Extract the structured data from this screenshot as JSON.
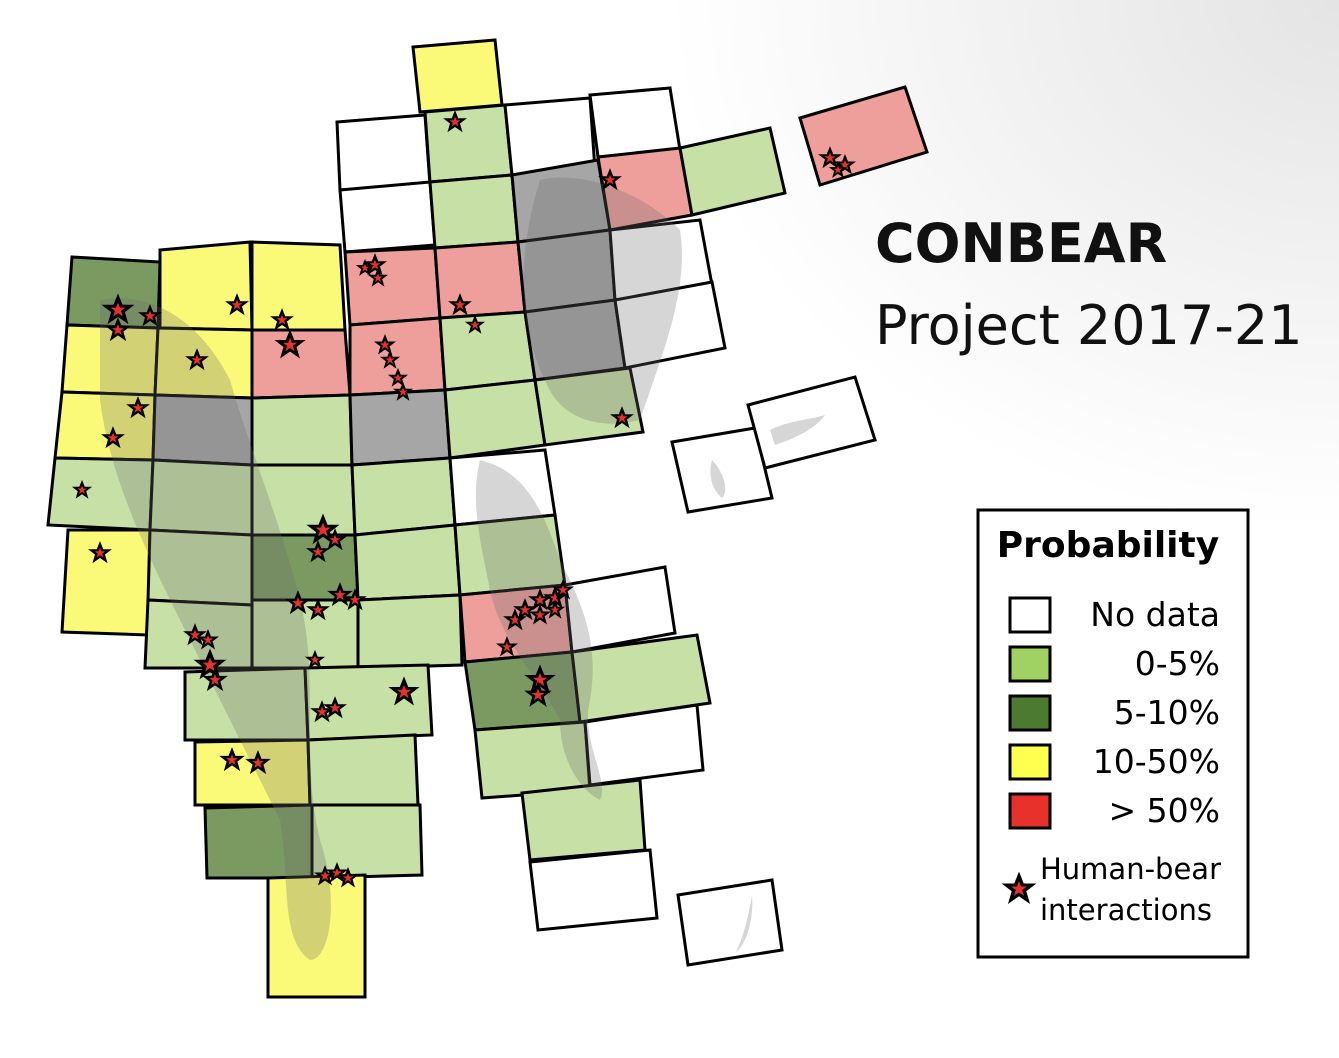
{
  "header": {
    "title": "CONBEAR",
    "subtitle": "Project 2017-21"
  },
  "legend": {
    "title": "Probability",
    "items": [
      {
        "label": "No data",
        "color": "#ffffff"
      },
      {
        "label": "0-5%",
        "color": "#9fd163"
      },
      {
        "label": "5-10%",
        "color": "#4b7a30"
      },
      {
        "label": "10-50%",
        "color": "#ffff4d"
      },
      {
        "label": "> 50%",
        "color": "#e8312a"
      }
    ],
    "marker": {
      "lines": [
        "Human-bear",
        "interactions"
      ]
    }
  }
}
